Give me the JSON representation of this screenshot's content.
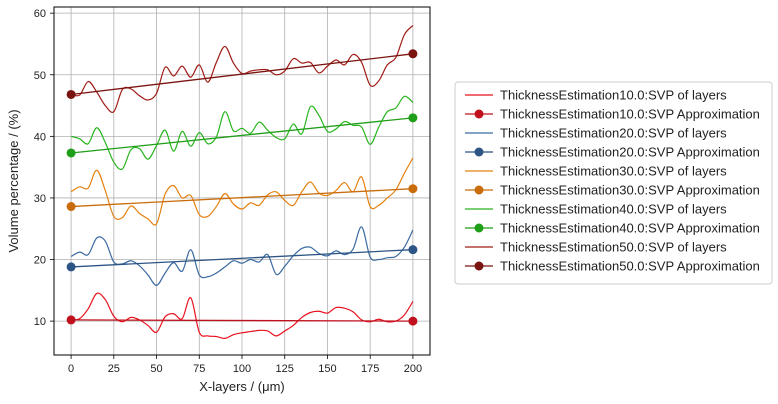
{
  "chart_data": {
    "type": "line",
    "title": "",
    "xlabel": "X-layers / (μm)",
    "ylabel": "Volume percentage / (%)",
    "xlim": [
      -10,
      210
    ],
    "ylim": [
      4.5,
      61
    ],
    "xticks": [
      0,
      25,
      50,
      75,
      100,
      125,
      150,
      175,
      200
    ],
    "yticks": [
      10,
      20,
      30,
      40,
      50,
      60
    ],
    "grid": true,
    "legend_position": "right",
    "series": [
      {
        "name": "ThicknessEstimation10.0:SVP of layers",
        "color": "#e8121e",
        "kind": "line",
        "x": [
          0,
          5,
          10,
          15,
          20,
          25,
          30,
          35,
          40,
          45,
          50,
          55,
          60,
          65,
          70,
          75,
          80,
          85,
          90,
          95,
          100,
          105,
          110,
          115,
          120,
          125,
          130,
          135,
          140,
          145,
          150,
          155,
          160,
          165,
          170,
          175,
          180,
          185,
          190,
          195,
          200
        ],
        "y": [
          10.2,
          10.4,
          12.0,
          14.5,
          13.5,
          10.8,
          9.9,
          10.6,
          10.2,
          9.3,
          8.2,
          10.7,
          11.2,
          10.4,
          13.8,
          8.2,
          7.6,
          7.5,
          7.2,
          7.8,
          8.1,
          8.3,
          8.5,
          8.4,
          7.6,
          8.4,
          9.3,
          10.6,
          11.4,
          11.6,
          11.3,
          12.2,
          12.1,
          11.5,
          10.2,
          9.9,
          10.3,
          9.9,
          10.0,
          11.0,
          13.2
        ]
      },
      {
        "name": "ThicknessEstimation10.0:SVP Approximation",
        "color": "#c0101d",
        "kind": "approx",
        "x": [
          0,
          200
        ],
        "y": [
          10.2,
          10.0
        ]
      },
      {
        "name": "ThicknessEstimation20.0:SVP of layers",
        "color": "#3b6aa0",
        "kind": "line",
        "x": [
          0,
          5,
          10,
          15,
          20,
          25,
          30,
          35,
          40,
          45,
          50,
          55,
          60,
          65,
          70,
          75,
          80,
          85,
          90,
          95,
          100,
          105,
          110,
          115,
          120,
          125,
          130,
          135,
          140,
          145,
          150,
          155,
          160,
          165,
          170,
          175,
          180,
          185,
          190,
          195,
          200
        ],
        "y": [
          20.5,
          21.2,
          20.8,
          23.5,
          23.0,
          19.6,
          19.3,
          19.8,
          19.0,
          17.5,
          15.8,
          17.8,
          19.5,
          18.1,
          21.6,
          17.5,
          17.2,
          17.8,
          18.8,
          19.8,
          19.4,
          20.0,
          19.6,
          20.8,
          17.6,
          18.9,
          20.6,
          21.8,
          22.0,
          21.0,
          20.6,
          21.4,
          20.8,
          21.7,
          25.3,
          20.4,
          20.0,
          20.3,
          20.5,
          22.0,
          24.8
        ]
      },
      {
        "name": "ThicknessEstimation20.0:SVP Approximation",
        "color": "#2c5585",
        "kind": "approx",
        "x": [
          0,
          200
        ],
        "y": [
          18.8,
          21.6
        ]
      },
      {
        "name": "ThicknessEstimation30.0:SVP of layers",
        "color": "#e5800f",
        "kind": "line",
        "x": [
          0,
          5,
          10,
          15,
          20,
          25,
          30,
          35,
          40,
          45,
          50,
          55,
          60,
          65,
          70,
          75,
          80,
          85,
          90,
          95,
          100,
          105,
          110,
          115,
          120,
          125,
          130,
          135,
          140,
          145,
          150,
          155,
          160,
          165,
          170,
          175,
          180,
          185,
          190,
          195,
          200
        ],
        "y": [
          31.0,
          31.8,
          31.6,
          34.5,
          31.2,
          27.0,
          26.8,
          28.7,
          27.5,
          26.6,
          25.8,
          30.6,
          32.0,
          30.0,
          30.4,
          27.3,
          27.0,
          28.6,
          30.7,
          29.0,
          28.2,
          29.2,
          28.8,
          30.5,
          31.0,
          29.6,
          28.8,
          31.0,
          32.6,
          30.8,
          30.4,
          31.2,
          32.5,
          31.0,
          33.4,
          28.6,
          28.8,
          30.0,
          31.3,
          34.0,
          36.5
        ]
      },
      {
        "name": "ThicknessEstimation30.0:SVP Approximation",
        "color": "#c96d0c",
        "kind": "approx",
        "x": [
          0,
          200
        ],
        "y": [
          28.6,
          31.5
        ]
      },
      {
        "name": "ThicknessEstimation40.0:SVP of layers",
        "color": "#28b51e",
        "kind": "line",
        "x": [
          0,
          5,
          10,
          15,
          20,
          25,
          30,
          35,
          40,
          45,
          50,
          55,
          60,
          65,
          70,
          75,
          80,
          85,
          90,
          95,
          100,
          105,
          110,
          115,
          120,
          125,
          130,
          135,
          140,
          145,
          150,
          155,
          160,
          165,
          170,
          175,
          180,
          185,
          190,
          195,
          200
        ],
        "y": [
          40.0,
          39.6,
          38.8,
          41.4,
          39.0,
          35.8,
          34.7,
          37.8,
          38.0,
          36.3,
          38.5,
          41.0,
          37.6,
          40.8,
          38.4,
          40.6,
          38.8,
          39.9,
          44.0,
          40.9,
          41.3,
          40.5,
          42.3,
          41.0,
          39.8,
          39.6,
          42.0,
          40.4,
          44.8,
          43.4,
          40.8,
          41.2,
          42.4,
          41.8,
          41.5,
          38.7,
          41.5,
          44.0,
          44.6,
          46.5,
          45.5
        ]
      },
      {
        "name": "ThicknessEstimation40.0:SVP Approximation",
        "color": "#1f9e17",
        "kind": "approx",
        "x": [
          0,
          200
        ],
        "y": [
          37.3,
          43.0
        ]
      },
      {
        "name": "ThicknessEstimation50.0:SVP of layers",
        "color": "#a01b16",
        "kind": "line",
        "x": [
          0,
          5,
          10,
          15,
          20,
          25,
          30,
          35,
          40,
          45,
          50,
          55,
          60,
          65,
          70,
          75,
          80,
          85,
          90,
          95,
          100,
          105,
          110,
          115,
          120,
          125,
          130,
          135,
          140,
          145,
          150,
          155,
          160,
          165,
          170,
          175,
          180,
          185,
          190,
          195,
          200
        ],
        "y": [
          46.8,
          46.7,
          48.9,
          47.2,
          45.0,
          44.0,
          47.6,
          47.7,
          46.6,
          45.9,
          47.0,
          51.2,
          49.8,
          51.4,
          49.6,
          51.6,
          48.8,
          52.0,
          54.6,
          51.9,
          50.2,
          50.6,
          50.8,
          50.8,
          50.0,
          50.6,
          52.6,
          51.9,
          52.0,
          50.3,
          51.4,
          52.4,
          51.6,
          53.3,
          52.0,
          48.3,
          49.0,
          51.6,
          52.8,
          56.5,
          58.0
        ]
      },
      {
        "name": "ThicknessEstimation50.0:SVP Approximation",
        "color": "#7a1410",
        "kind": "approx",
        "x": [
          0,
          200
        ],
        "y": [
          46.8,
          53.4
        ]
      }
    ]
  }
}
